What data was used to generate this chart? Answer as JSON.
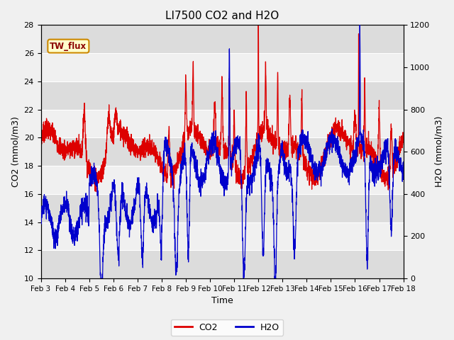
{
  "title": "LI7500 CO2 and H2O",
  "xlabel": "Time",
  "ylabel_left": "CO2 (mmol/m3)",
  "ylabel_right": "H2O (mmol/m3)",
  "ylim_left": [
    10,
    28
  ],
  "ylim_right": [
    0,
    1200
  ],
  "yticks_left": [
    10,
    12,
    14,
    16,
    18,
    20,
    22,
    24,
    26,
    28
  ],
  "yticks_right": [
    0,
    200,
    400,
    600,
    800,
    1000,
    1200
  ],
  "annotation_text": "TW_flux",
  "annotation_bg": "#ffffcc",
  "annotation_border": "#cc8800",
  "co2_color": "#dd0000",
  "h2o_color": "#0000cc",
  "legend_co2": "CO2",
  "legend_h2o": "H2O",
  "fig_bg": "#f0f0f0",
  "band_light": "#f0f0f0",
  "band_dark": "#dcdcdc",
  "n_points": 3000,
  "days": 15
}
